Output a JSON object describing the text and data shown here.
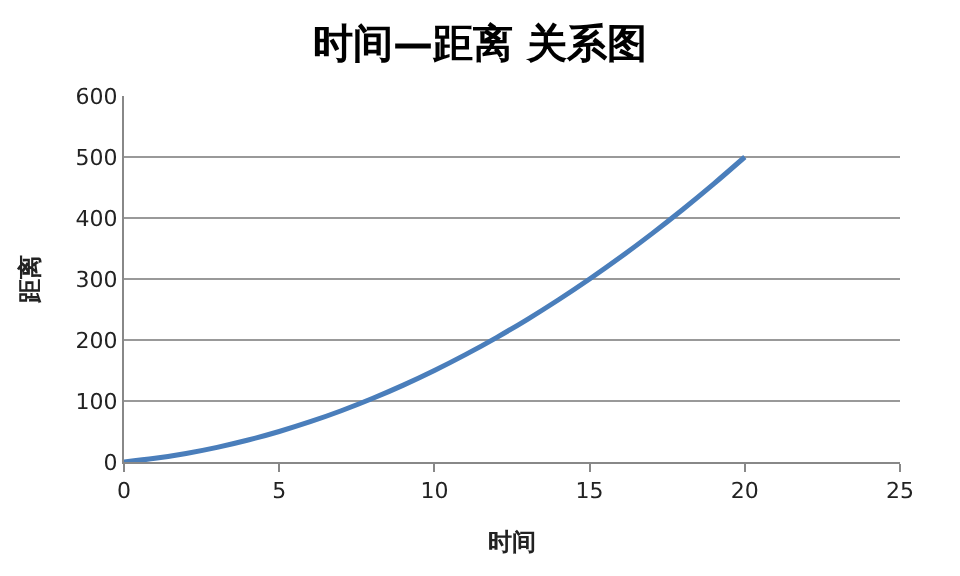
{
  "chart_data": {
    "type": "line",
    "title": "时间—距离 关系图",
    "xlabel": "时间",
    "ylabel": "距离",
    "x": [
      0,
      1,
      2,
      3,
      4,
      5,
      6,
      7,
      8,
      9,
      10,
      11,
      12,
      13,
      14,
      15,
      16,
      17,
      18,
      19,
      20
    ],
    "series": [
      {
        "color": "#4a7ebb",
        "values": [
          0,
          6,
          14,
          24,
          36,
          50,
          66,
          84,
          104,
          126,
          150,
          176,
          204,
          234,
          266,
          300,
          336,
          374,
          414,
          456,
          500
        ]
      }
    ],
    "xlim": [
      0,
      25
    ],
    "xticks": [
      0,
      5,
      10,
      15,
      20,
      25
    ],
    "ylim": [
      0,
      600
    ],
    "yticks": [
      0,
      100,
      200,
      300,
      400,
      500,
      600
    ],
    "grid": "y",
    "marker": "none",
    "line_style": "solid"
  }
}
